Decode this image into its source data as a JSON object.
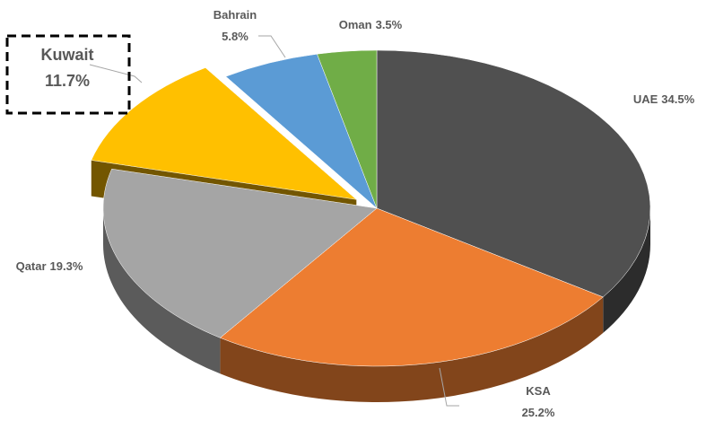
{
  "chart_data": {
    "type": "pie",
    "categories": [
      "UAE",
      "KSA",
      "Qatar",
      "Kuwait",
      "Bahrain",
      "Oman"
    ],
    "values": [
      34.5,
      25.2,
      19.3,
      11.7,
      5.8,
      3.5
    ],
    "value_labels": [
      "34.5%",
      "25.2%",
      "19.3%",
      "11.7%",
      "5.8%",
      "3.5%"
    ],
    "colors": [
      "#505050",
      "#ed7d31",
      "#a5a5a5",
      "#ffc000",
      "#5b9bd5",
      "#70ad47"
    ],
    "exploded": "Kuwait"
  }
}
